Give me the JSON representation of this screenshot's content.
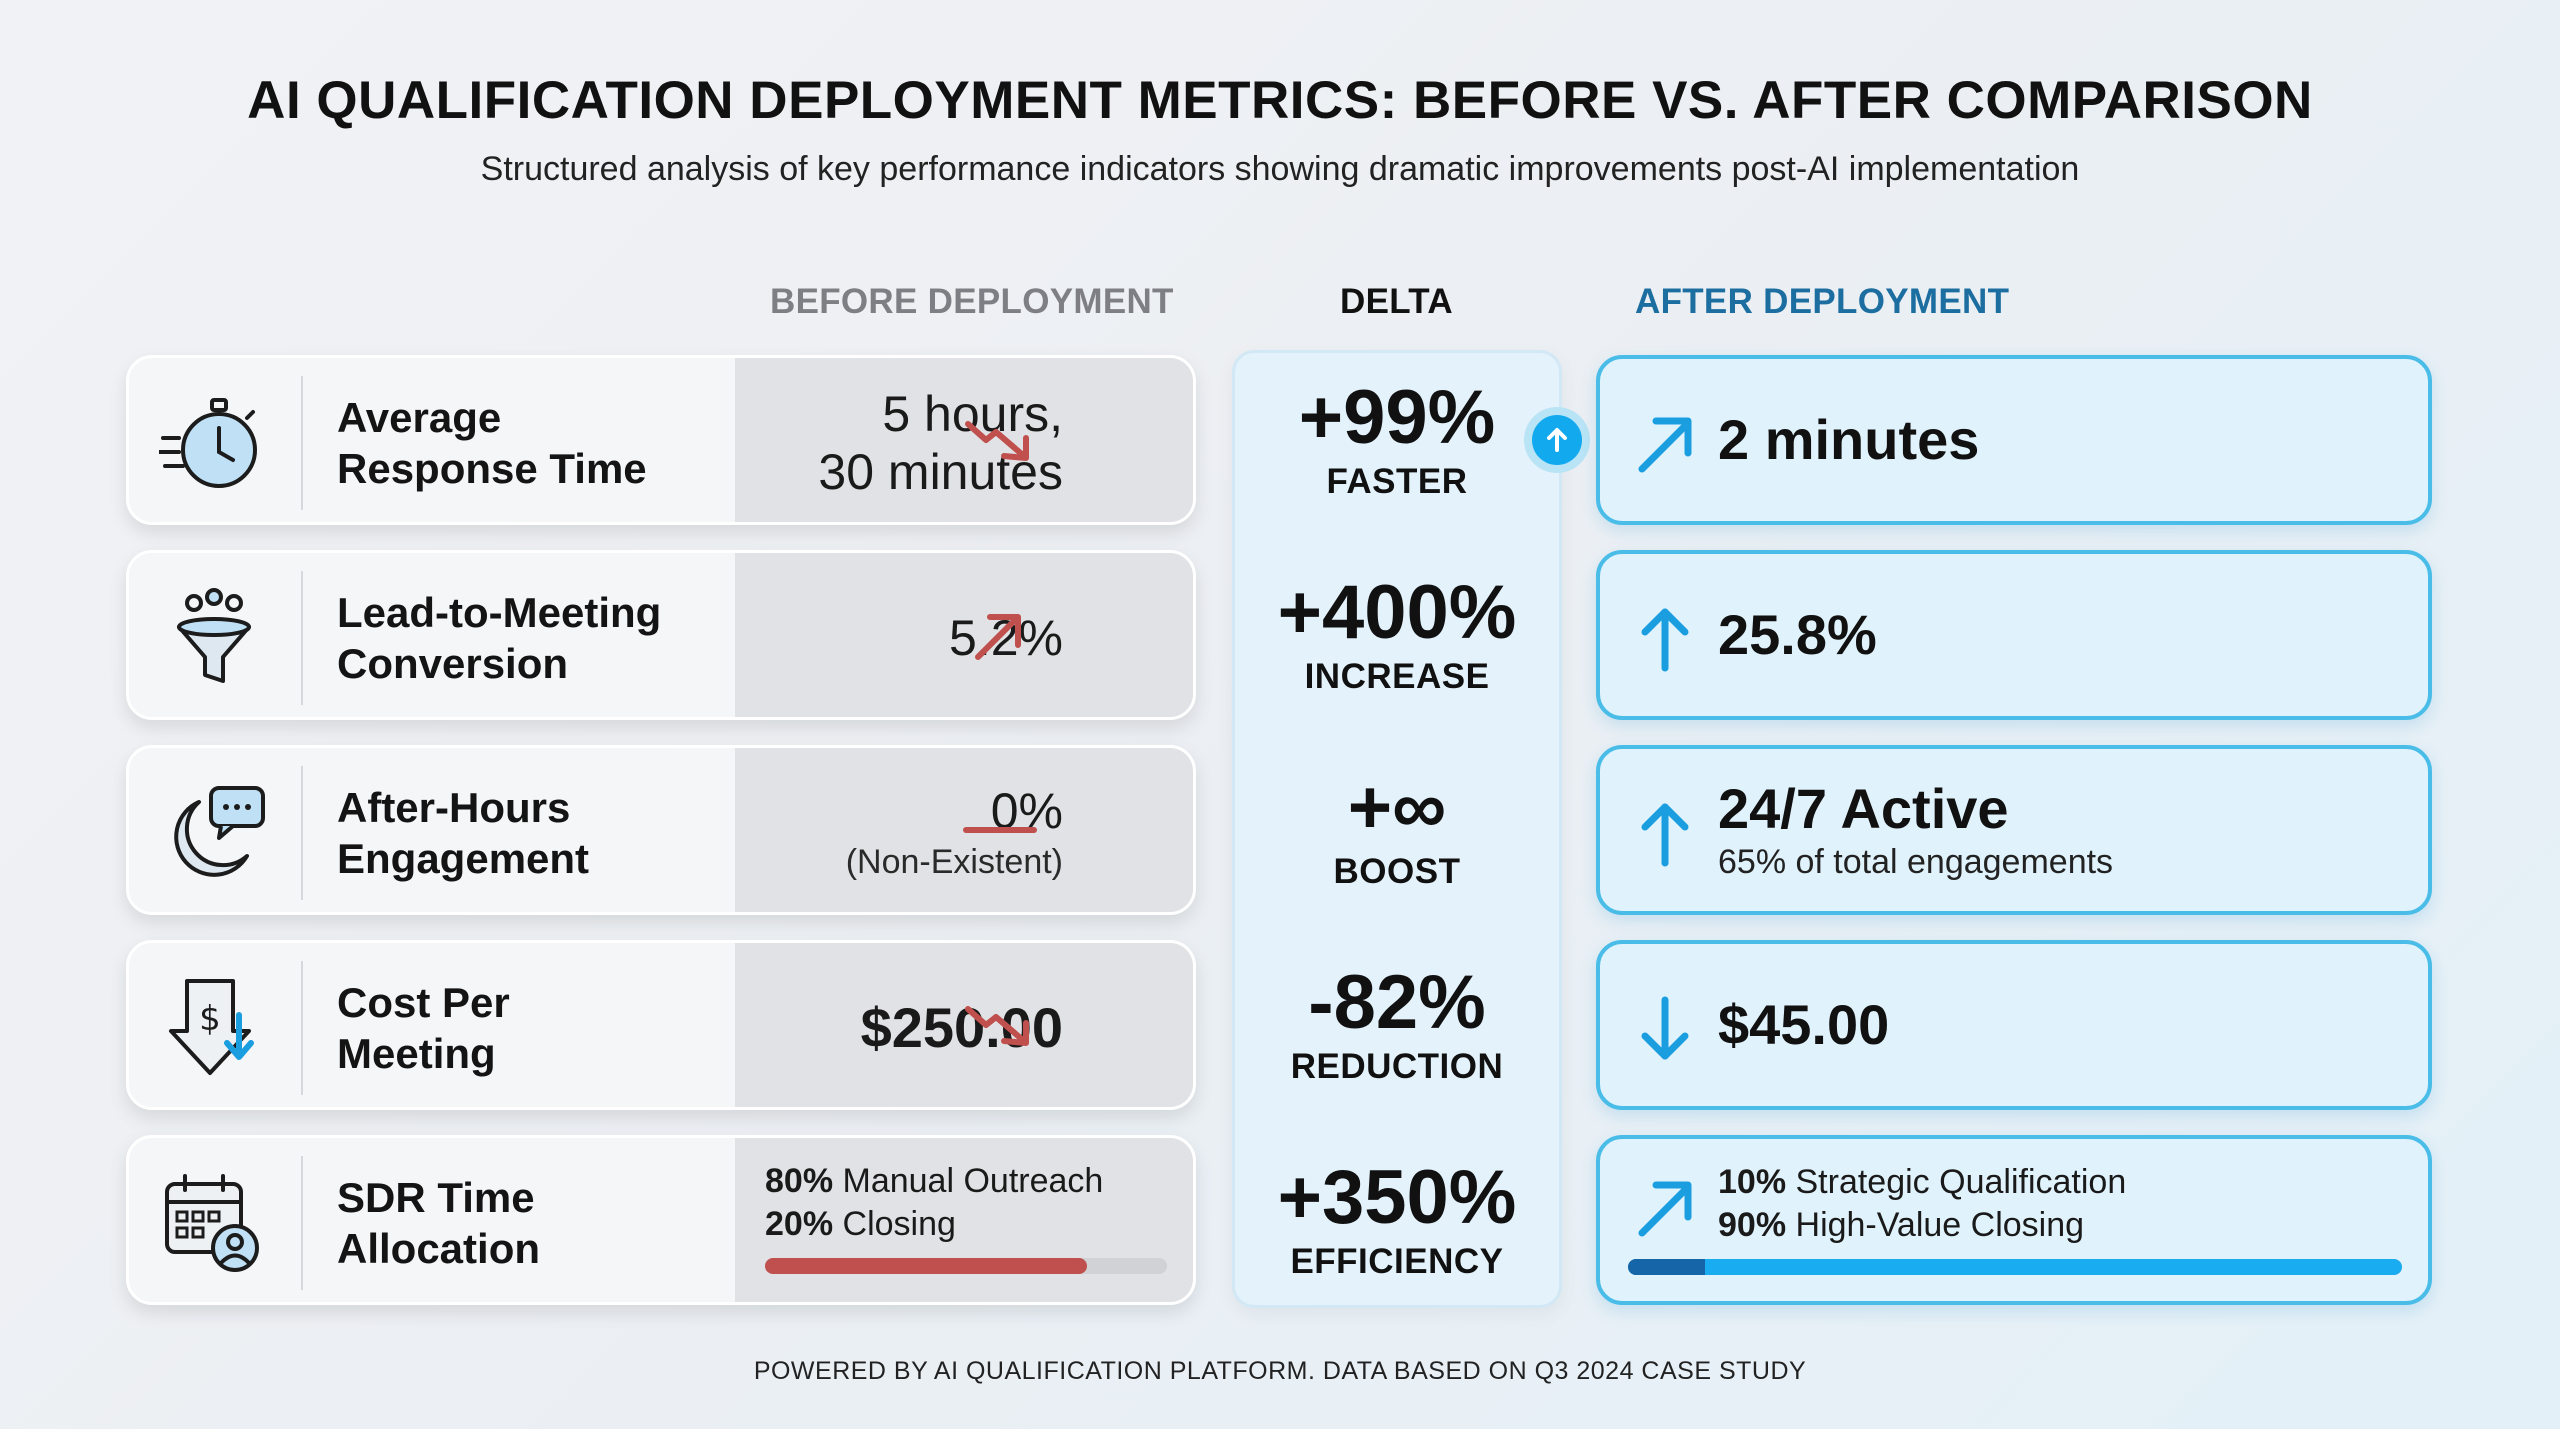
{
  "header": {
    "title": "AI QUALIFICATION DEPLOYMENT METRICS: BEFORE VS. AFTER COMPARISON",
    "subtitle": "Structured analysis of key performance indicators showing dramatic improvements post-AI implementation"
  },
  "columns": {
    "before": "BEFORE DEPLOYMENT",
    "delta": "DELTA",
    "after": "AFTER DEPLOYMENT"
  },
  "colors": {
    "before_trend": "#c0504d",
    "after_accent": "#1a9ee0",
    "after_border": "#49bde8"
  },
  "rows": [
    {
      "label_line1": "Average",
      "label_line2": "Response Time",
      "icon": "stopwatch-icon",
      "before_line1": "5 hours,",
      "before_line2": "30 minutes",
      "before_trend": "trend-down-icon",
      "delta_value": "+99%",
      "delta_word": "FASTER",
      "after_value": "2 minutes",
      "after_arrow": "arrow-up-right-icon"
    },
    {
      "label_line1": "Lead-to-Meeting",
      "label_line2": "Conversion",
      "icon": "funnel-icon",
      "before_line1": "5.2%",
      "before_trend": "trend-up-icon",
      "delta_value": "+400%",
      "delta_word": "INCREASE",
      "after_value": "25.8%",
      "after_arrow": "arrow-up-icon"
    },
    {
      "label_line1": "After-Hours",
      "label_line2": "Engagement",
      "icon": "moon-chat-icon",
      "before_line1": "0%",
      "before_line2": "(Non-Existent)",
      "before_trend": "flat-line-icon",
      "delta_value": "+∞",
      "delta_word": "BOOST",
      "after_value": "24/7 Active",
      "after_sub": "65% of total engagements",
      "after_arrow": "arrow-up-icon"
    },
    {
      "label_line1": "Cost Per",
      "label_line2": "Meeting",
      "icon": "dollar-down-icon",
      "before_line1": "$250.00",
      "before_trend": "trend-down-icon",
      "delta_value": "-82%",
      "delta_word": "REDUCTION",
      "after_value": "$45.00",
      "after_arrow": "arrow-down-icon"
    },
    {
      "label_line1": "SDR Time",
      "label_line2": "Allocation",
      "icon": "calendar-user-icon",
      "before_alloc": [
        {
          "pct": "80%",
          "text": " Manual Outreach"
        },
        {
          "pct": "20%",
          "text": " Closing"
        }
      ],
      "before_bar_fraction": 0.8,
      "delta_value": "+350%",
      "delta_word": "EFFICIENCY",
      "after_alloc": [
        {
          "pct": "10%",
          "text": " Strategic Qualification"
        },
        {
          "pct": "90%",
          "text": " High-Value Closing"
        }
      ],
      "after_bar_fractions": [
        0.1,
        0.9
      ],
      "after_arrow": "arrow-up-right-icon"
    }
  ],
  "footer": "POWERED BY AI QUALIFICATION PLATFORM. DATA BASED ON Q3 2024 CASE STUDY"
}
